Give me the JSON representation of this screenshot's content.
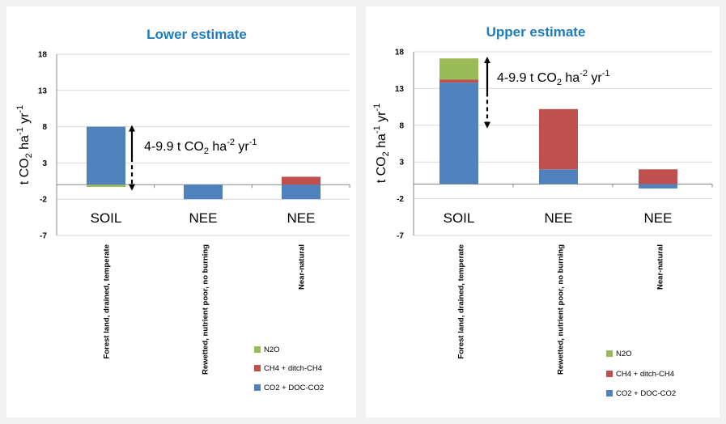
{
  "colors": {
    "N2O": "#9bbb59",
    "CH4": "#c0504d",
    "CO2": "#4f81bd",
    "title": "#1f7bbf"
  },
  "chart_data": [
    {
      "type": "bar",
      "stacked": true,
      "title": "Lower estimate",
      "ylabel": "t CO2 ha-1 yr-1",
      "ylabel_parts": {
        "base": "t CO",
        "sub": "2",
        "mid": " ha",
        "sup1": "-1",
        "mid2": " yr",
        "sup2": "-1"
      },
      "ylim": [
        -7,
        18
      ],
      "yticks": [
        18,
        13,
        8,
        3,
        -2,
        -7
      ],
      "grid": true,
      "categories": [
        "Forest land, drained, temperate",
        "Rewetted, nutrient poor, no burning",
        "Near-natural"
      ],
      "category_short": [
        "SOIL",
        "NEE",
        "NEE"
      ],
      "series": [
        {
          "name": "CO2 + DOC-CO2",
          "color_key": "CO2",
          "values": [
            8,
            -2,
            -2
          ]
        },
        {
          "name": "CH4 + ditch-CH4",
          "color_key": "CH4",
          "values": [
            0,
            0,
            1.1
          ]
        },
        {
          "name": "N2O",
          "color_key": "N2O",
          "values": [
            -0.3,
            0,
            0
          ]
        }
      ],
      "legend_order": [
        "N2O",
        "CH4 + ditch-CH4",
        "CO2 + DOC-CO2"
      ],
      "legend": "bottom-right",
      "annotation": {
        "text_parts": {
          "a": "4-9.9 t CO",
          "sub": "2",
          "b": " ha",
          "sup1": "-2",
          "c": " yr",
          "sup2": "-1"
        },
        "y_from": 8,
        "y_to": -0.6
      }
    },
    {
      "type": "bar",
      "stacked": true,
      "title": "Upper estimate",
      "ylabel": "t CO2 ha-1 yr-1",
      "ylabel_parts": {
        "base": "t CO",
        "sub": "2",
        "mid": " ha",
        "sup1": "-1",
        "mid2": " yr",
        "sup2": "-1"
      },
      "ylim": [
        -7,
        18
      ],
      "yticks": [
        18,
        13,
        8,
        3,
        -2,
        -7
      ],
      "grid": true,
      "categories": [
        "Forest land, drained, temperate",
        "Rewetted, nutrient poor, no burning",
        "Near-natural"
      ],
      "category_short": [
        "SOIL",
        "NEE",
        "NEE"
      ],
      "series": [
        {
          "name": "CO2 + DOC-CO2",
          "color_key": "CO2",
          "values": [
            13.8,
            2,
            -0.6
          ]
        },
        {
          "name": "CH4 + ditch-CH4",
          "color_key": "CH4",
          "values": [
            0.4,
            8.2,
            2
          ]
        },
        {
          "name": "N2O",
          "color_key": "N2O",
          "values": [
            2.9,
            0,
            0
          ]
        }
      ],
      "legend_order": [
        "N2O",
        "CH4 + ditch-CH4",
        "CO2 + DOC-CO2"
      ],
      "legend": "bottom-right",
      "annotation": {
        "text_parts": {
          "a": "4-9.9 t CO",
          "sub": "2",
          "b": " ha",
          "sup1": "-2",
          "c": " yr",
          "sup2": "-1"
        },
        "y_from": 17.1,
        "y_to": 7.8
      }
    }
  ]
}
